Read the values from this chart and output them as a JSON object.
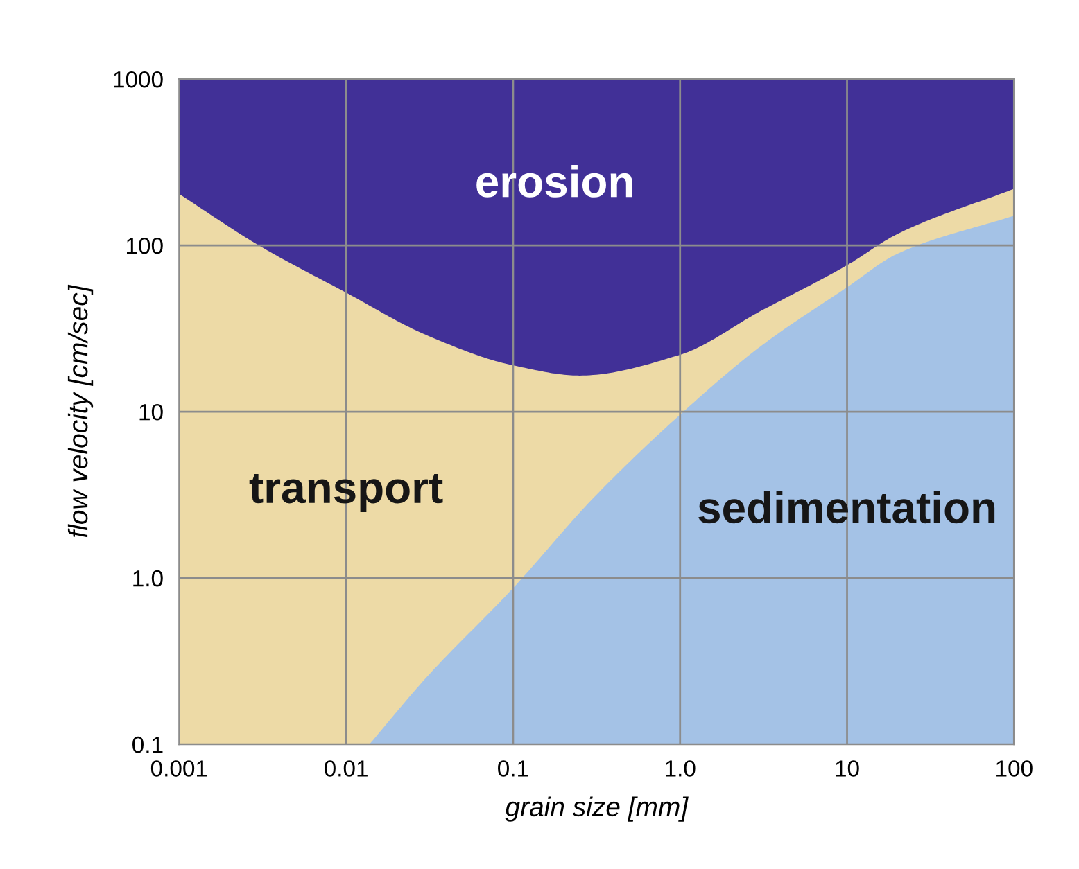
{
  "chart_data": {
    "type": "area",
    "log": "xy",
    "xlabel": "grain size [mm]",
    "ylabel": "flow velocity [cm/sec]",
    "xlim": [
      0.001,
      100
    ],
    "ylim": [
      0.1,
      1000
    ],
    "xticks": [
      0.001,
      0.01,
      0.1,
      {
        "value": 1,
        "label": "1.0"
      },
      10,
      100
    ],
    "yticks": [
      0.1,
      {
        "value": 1,
        "label": "1.0"
      },
      10,
      100,
      1000
    ],
    "grid": true,
    "legend": false,
    "series": [
      {
        "name": "erosion",
        "color": "#413097",
        "x": [
          0.001,
          100
        ],
        "values": [
          1000,
          1000
        ]
      },
      {
        "name": "transport",
        "color": "#eddaa6",
        "x": [
          0.001,
          0.003,
          0.01,
          0.03,
          0.1,
          0.25,
          1,
          3,
          10,
          20,
          100
        ],
        "values": [
          204,
          100,
          52,
          29,
          19,
          16.5,
          22,
          40,
          76,
          117,
          219
        ]
      },
      {
        "name": "sedimentation",
        "color": "#a4c2e6",
        "x": [
          0.0138,
          0.03,
          0.1,
          0.3,
          1,
          3,
          10,
          20,
          100
        ],
        "values": [
          0.1,
          0.25,
          0.87,
          3.0,
          9.6,
          24.5,
          56,
          89,
          151
        ]
      }
    ]
  }
}
